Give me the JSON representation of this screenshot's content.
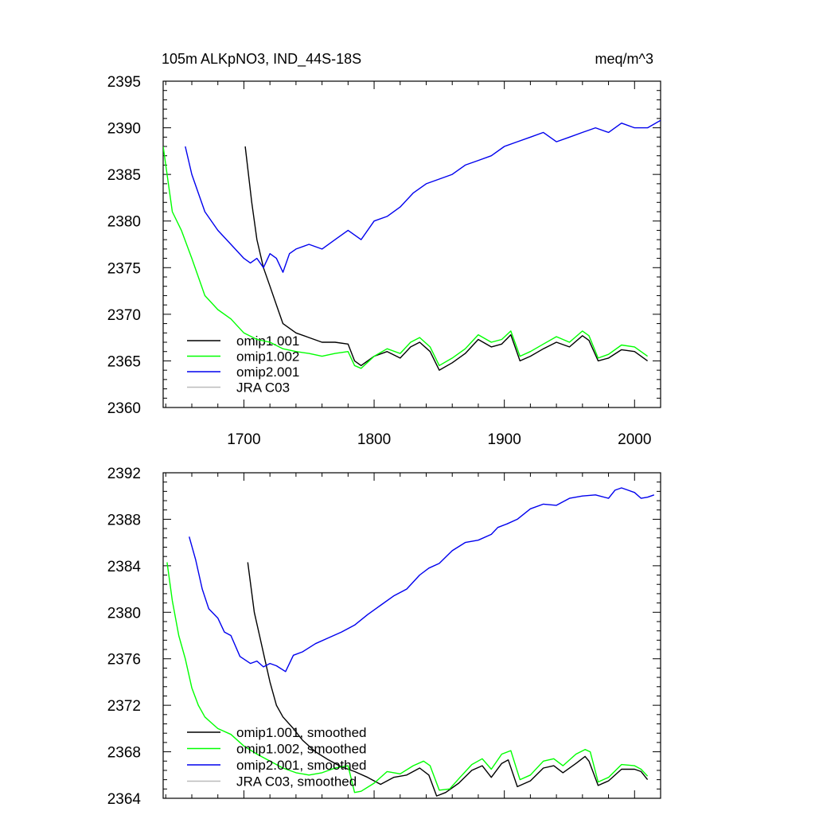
{
  "colors": {
    "omip1_001": "#000000",
    "omip1_002": "#00ff00",
    "omip2_001": "#0000ee",
    "jra_c03": "#bbbbbb"
  },
  "chart_data": [
    {
      "type": "line",
      "title": "105m ALKpNO3, IND_44S-18S",
      "units": "meq/m^3",
      "xlim": [
        1638,
        2020
      ],
      "ylim": [
        2360,
        2395
      ],
      "xticks": [
        1700,
        1800,
        1900,
        2000
      ],
      "yticks": [
        2360,
        2365,
        2370,
        2375,
        2380,
        2385,
        2390,
        2395
      ],
      "legend_position": "bottom-left",
      "series": [
        {
          "name": "omip1.001",
          "color_key": "omip1_001",
          "x": [
            1701,
            1706,
            1710,
            1715,
            1720,
            1725,
            1730,
            1740,
            1750,
            1760,
            1770,
            1780,
            1785,
            1790,
            1800,
            1810,
            1820,
            1828,
            1835,
            1843,
            1850,
            1860,
            1870,
            1880,
            1890,
            1898,
            1905,
            1912,
            1920,
            1930,
            1940,
            1950,
            1960,
            1965,
            1972,
            1980,
            1990,
            2000,
            2010
          ],
          "y": [
            2388,
            2382,
            2378,
            2375,
            2373,
            2371,
            2369,
            2368,
            2367.5,
            2367,
            2367,
            2366.8,
            2365,
            2364.5,
            2365.5,
            2366,
            2365.3,
            2366.5,
            2367,
            2366,
            2364,
            2364.8,
            2365.8,
            2367.3,
            2366.5,
            2366.8,
            2367.8,
            2365,
            2365.5,
            2366.3,
            2367,
            2366.5,
            2367.7,
            2367.2,
            2365,
            2365.3,
            2366.2,
            2366,
            2365
          ]
        },
        {
          "name": "omip1.002",
          "color_key": "omip1_002",
          "x": [
            1638,
            1645,
            1652,
            1660,
            1670,
            1680,
            1690,
            1700,
            1710,
            1720,
            1730,
            1740,
            1750,
            1760,
            1770,
            1780,
            1785,
            1790,
            1800,
            1810,
            1820,
            1828,
            1835,
            1843,
            1850,
            1860,
            1870,
            1880,
            1890,
            1898,
            1905,
            1912,
            1920,
            1930,
            1940,
            1950,
            1960,
            1965,
            1972,
            1980,
            1990,
            2000,
            2010
          ],
          "y": [
            2388,
            2381,
            2379,
            2376,
            2372,
            2370.5,
            2369.5,
            2368,
            2367.3,
            2367,
            2366.3,
            2366,
            2365.8,
            2365.5,
            2365.8,
            2366,
            2364.5,
            2364.2,
            2365.5,
            2366.3,
            2365.8,
            2367,
            2367.5,
            2366.5,
            2364.5,
            2365.3,
            2366.3,
            2367.8,
            2367,
            2367.3,
            2368.2,
            2365.5,
            2366,
            2366.8,
            2367.6,
            2367,
            2368.2,
            2367.7,
            2365.3,
            2365.7,
            2366.7,
            2366.5,
            2365.5
          ]
        },
        {
          "name": "omip2.001",
          "color_key": "omip2_001",
          "x": [
            1655,
            1660,
            1665,
            1670,
            1680,
            1690,
            1700,
            1705,
            1710,
            1715,
            1720,
            1725,
            1730,
            1735,
            1740,
            1750,
            1760,
            1770,
            1780,
            1790,
            1800,
            1810,
            1820,
            1830,
            1840,
            1850,
            1860,
            1870,
            1880,
            1890,
            1900,
            1910,
            1920,
            1930,
            1940,
            1950,
            1960,
            1970,
            1980,
            1990,
            2000,
            2010,
            2020
          ],
          "y": [
            2388,
            2385,
            2383,
            2381,
            2379,
            2377.5,
            2376,
            2375.5,
            2376,
            2375,
            2376.5,
            2376,
            2374.5,
            2376.5,
            2377,
            2377.5,
            2377,
            2378,
            2379,
            2378,
            2380,
            2380.5,
            2381.5,
            2383,
            2384,
            2384.5,
            2385,
            2386,
            2386.5,
            2387,
            2388,
            2388.5,
            2389,
            2389.5,
            2388.5,
            2389,
            2389.5,
            2390,
            2389.5,
            2390.5,
            2390,
            2390,
            2390.8
          ]
        },
        {
          "name": "JRA C03",
          "color_key": "jra_c03",
          "x": [],
          "y": []
        }
      ]
    },
    {
      "type": "line",
      "title": "",
      "xlim": [
        1638,
        2020
      ],
      "ylim": [
        2364,
        2392
      ],
      "xticks": [
        1700,
        1800,
        1900,
        2000
      ],
      "yticks": [
        2364,
        2368,
        2372,
        2376,
        2380,
        2384,
        2388,
        2392
      ],
      "legend_position": "bottom-left",
      "series": [
        {
          "name": "omip1.001, smoothed",
          "color_key": "omip1_001",
          "x": [
            1703,
            1708,
            1712,
            1716,
            1720,
            1725,
            1730,
            1738,
            1745,
            1755,
            1765,
            1775,
            1785,
            1795,
            1805,
            1815,
            1825,
            1835,
            1842,
            1848,
            1855,
            1865,
            1875,
            1883,
            1890,
            1898,
            1903,
            1910,
            1920,
            1930,
            1938,
            1945,
            1955,
            1962,
            1965,
            1972,
            1980,
            1990,
            2000,
            2005,
            2010
          ],
          "y": [
            2384.3,
            2380,
            2378,
            2376,
            2374,
            2372,
            2371,
            2370,
            2369,
            2368,
            2367.3,
            2366.7,
            2366.3,
            2365.8,
            2365.2,
            2365.8,
            2366,
            2366.6,
            2366,
            2364.2,
            2364.5,
            2365.3,
            2366.4,
            2366.8,
            2365.8,
            2367,
            2367.3,
            2365,
            2365.5,
            2366.6,
            2366.8,
            2366.2,
            2367,
            2367.6,
            2367.2,
            2365.1,
            2365.5,
            2366.5,
            2366.5,
            2366.3,
            2365.6
          ]
        },
        {
          "name": "omip1.002, smoothed",
          "color_key": "omip1_002",
          "x": [
            1641,
            1645,
            1650,
            1655,
            1660,
            1665,
            1670,
            1675,
            1680,
            1690,
            1700,
            1710,
            1720,
            1730,
            1740,
            1750,
            1760,
            1770,
            1780,
            1785,
            1790,
            1800,
            1810,
            1820,
            1830,
            1838,
            1843,
            1850,
            1858,
            1866,
            1875,
            1883,
            1890,
            1898,
            1905,
            1912,
            1920,
            1930,
            1938,
            1945,
            1955,
            1962,
            1966,
            1972,
            1980,
            1990,
            2000,
            2005,
            2010
          ],
          "y": [
            2384.3,
            2381,
            2378,
            2376,
            2373.5,
            2372,
            2371,
            2370.5,
            2370,
            2369.5,
            2368.5,
            2367.8,
            2367.2,
            2366.6,
            2366.2,
            2366,
            2366.2,
            2366.6,
            2366.8,
            2364.5,
            2364.6,
            2365.3,
            2366.3,
            2366.1,
            2366.8,
            2367.2,
            2366.8,
            2364.7,
            2364.8,
            2365.8,
            2366.9,
            2367.4,
            2366.5,
            2367.8,
            2368.1,
            2365.6,
            2366,
            2367.2,
            2367.4,
            2366.8,
            2367.8,
            2368.2,
            2368,
            2365.4,
            2365.8,
            2366.9,
            2366.8,
            2366.5,
            2365.9
          ]
        },
        {
          "name": "omip2.001, smoothed",
          "color_key": "omip2_001",
          "x": [
            1658,
            1663,
            1668,
            1673,
            1680,
            1685,
            1690,
            1697,
            1705,
            1710,
            1715,
            1720,
            1725,
            1732,
            1738,
            1745,
            1755,
            1765,
            1775,
            1785,
            1795,
            1805,
            1815,
            1825,
            1835,
            1842,
            1850,
            1860,
            1870,
            1880,
            1890,
            1895,
            1902,
            1910,
            1920,
            1930,
            1940,
            1950,
            1960,
            1970,
            1980,
            1985,
            1990,
            1995,
            2000,
            2005,
            2010,
            2015
          ],
          "y": [
            2386.5,
            2384.5,
            2382,
            2380.3,
            2379.5,
            2378.3,
            2378,
            2376.2,
            2375.6,
            2375.8,
            2375.3,
            2375.6,
            2375.4,
            2374.9,
            2376.3,
            2376.6,
            2377.3,
            2377.8,
            2378.3,
            2378.9,
            2379.8,
            2380.6,
            2381.4,
            2382,
            2383.2,
            2383.8,
            2384.2,
            2385.3,
            2386,
            2386.2,
            2386.7,
            2387.3,
            2387.6,
            2388,
            2388.9,
            2389.3,
            2389.2,
            2389.8,
            2390,
            2390.1,
            2389.8,
            2390.5,
            2390.7,
            2390.5,
            2390.3,
            2389.8,
            2389.9,
            2390.1
          ]
        },
        {
          "name": "JRA C03, smoothed",
          "color_key": "jra_c03",
          "x": [],
          "y": []
        }
      ]
    }
  ]
}
